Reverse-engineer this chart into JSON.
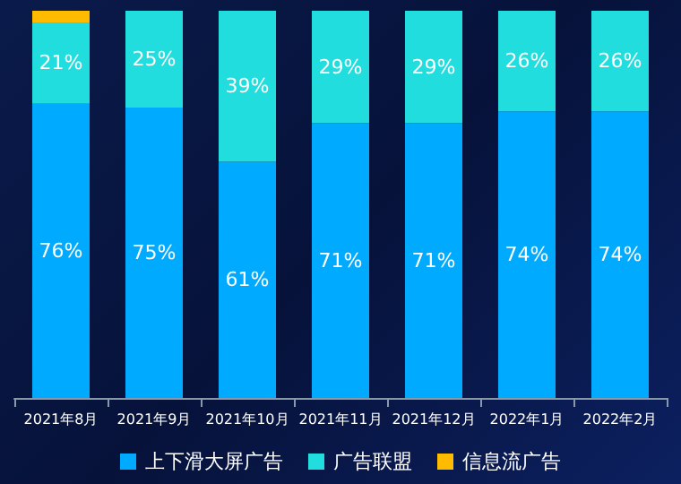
{
  "chart_data": {
    "type": "bar",
    "stacked": true,
    "categories": [
      "2021年8月",
      "2021年9月",
      "2021年10月",
      "2021年11月",
      "2021年12月",
      "2022年1月",
      "2022年2月"
    ],
    "ylim": [
      0,
      100
    ],
    "tick_labels": "x",
    "grid": false,
    "legend": "bottom",
    "series": [
      {
        "name": "上下滑大屏广告",
        "color": "#00aaff",
        "values": [
          76,
          75,
          61,
          71,
          71,
          74,
          74
        ],
        "value_labels": [
          "76%",
          "75%",
          "61%",
          "71%",
          "71%",
          "74%",
          "74%"
        ]
      },
      {
        "name": "广告联盟",
        "color": "#22dddd",
        "values": [
          21,
          25,
          39,
          29,
          29,
          26,
          26
        ],
        "value_labels": [
          "21%",
          "25%",
          "39%",
          "29%",
          "29%",
          "26%",
          "26%"
        ]
      },
      {
        "name": "信息流广告",
        "color": "#ffbb00",
        "values": [
          3,
          0,
          0,
          0,
          0,
          0,
          0
        ],
        "value_labels": [
          null,
          null,
          null,
          null,
          null,
          null,
          null
        ]
      }
    ]
  }
}
